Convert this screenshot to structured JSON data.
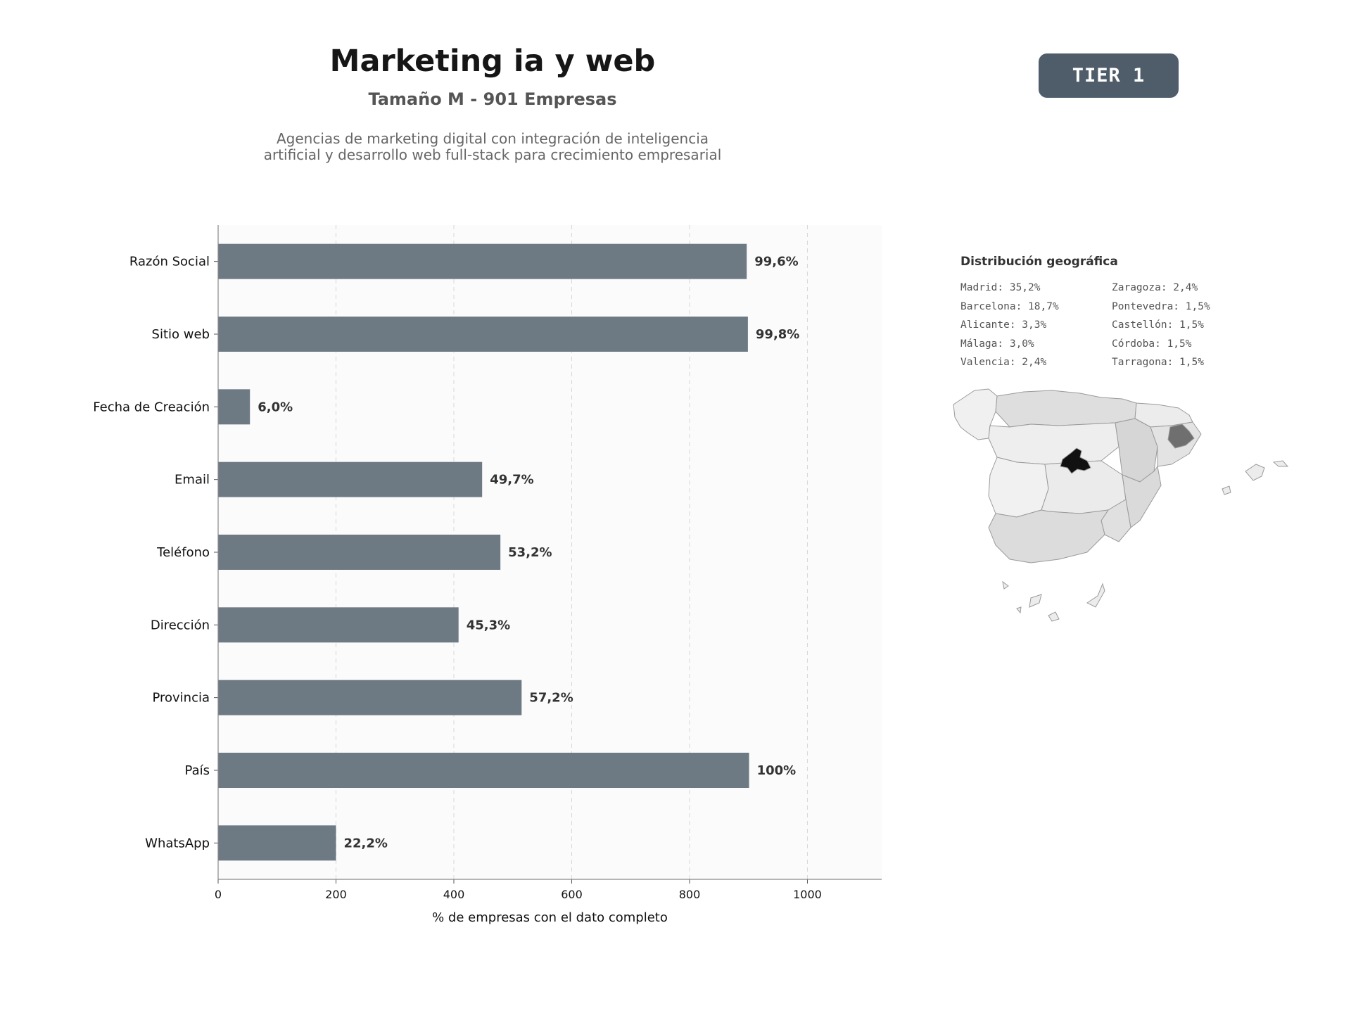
{
  "header": {
    "title": "Marketing ia y web",
    "subtitle": "Tamaño M - 901 Empresas",
    "description_line1": "Agencias de marketing digital con integración de inteligencia",
    "description_line2": "artificial y desarrollo web full-stack para crecimiento empresarial",
    "tier": "TIER 1"
  },
  "colors": {
    "bar": "#6e7a83",
    "badge": "#4f5d6b",
    "map_madrid": "#111111",
    "map_barcelona": "#6f6f6f",
    "map_light": "#f2f2f2",
    "map_mid": "#d9d9d9"
  },
  "chart_data": {
    "type": "bar",
    "orientation": "horizontal",
    "categories": [
      "Razón Social",
      "Sitio web",
      "Fecha de Creación",
      "Email",
      "Teléfono",
      "Dirección",
      "Provincia",
      "País",
      "WhatsApp"
    ],
    "values": [
      897,
      899,
      54,
      448,
      479,
      408,
      515,
      901,
      200
    ],
    "value_labels": [
      "99,6%",
      "99,8%",
      "6,0%",
      "49,7%",
      "53,2%",
      "45,3%",
      "57,2%",
      "100%",
      "22,2%"
    ],
    "xlabel": "% de empresas con el dato completo",
    "ylabel": "",
    "xlim": [
      0,
      1126
    ],
    "xticks": [
      0,
      200,
      400,
      600,
      800,
      1000
    ],
    "grid": "vertical dashed"
  },
  "geo": {
    "title": "Distribución geográfica",
    "items": [
      "Madrid: 35,2%",
      "Zaragoza: 2,4%",
      "Barcelona: 18,7%",
      "Pontevedra: 1,5%",
      "Alicante: 3,3%",
      "Castellón: 1,5%",
      "Málaga: 3,0%",
      "Córdoba: 1,5%",
      "Valencia: 2,4%",
      "Tarragona: 1,5%"
    ]
  }
}
